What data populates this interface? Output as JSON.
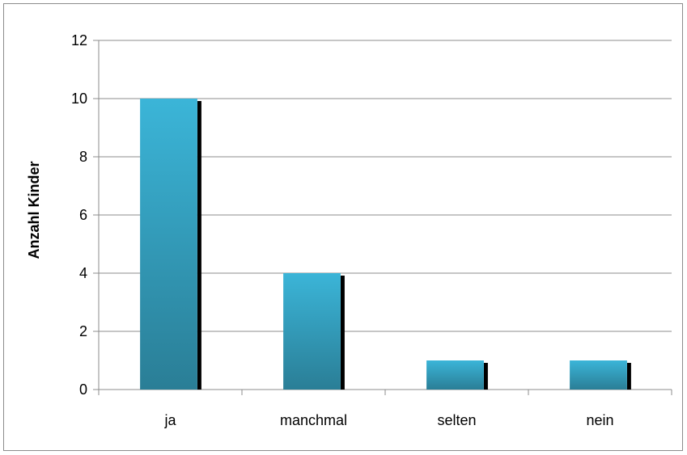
{
  "chart_data": {
    "type": "bar",
    "title": "",
    "xlabel": "",
    "ylabel": "Anzahl Kinder",
    "categories": [
      "ja",
      "manchmal",
      "selten",
      "nein"
    ],
    "values": [
      10,
      4,
      1,
      1
    ],
    "ylim": [
      0,
      12
    ],
    "yticks": [
      "0",
      "2",
      "4",
      "6",
      "8",
      "10",
      "12"
    ],
    "grid": true,
    "legend": "none",
    "colors": {
      "bar_top": "#3bb5d8",
      "bar_bottom": "#2a7e96",
      "bar_shadow": "#000000",
      "grid": "#8c8c8c",
      "axis": "#8c8c8c"
    }
  }
}
